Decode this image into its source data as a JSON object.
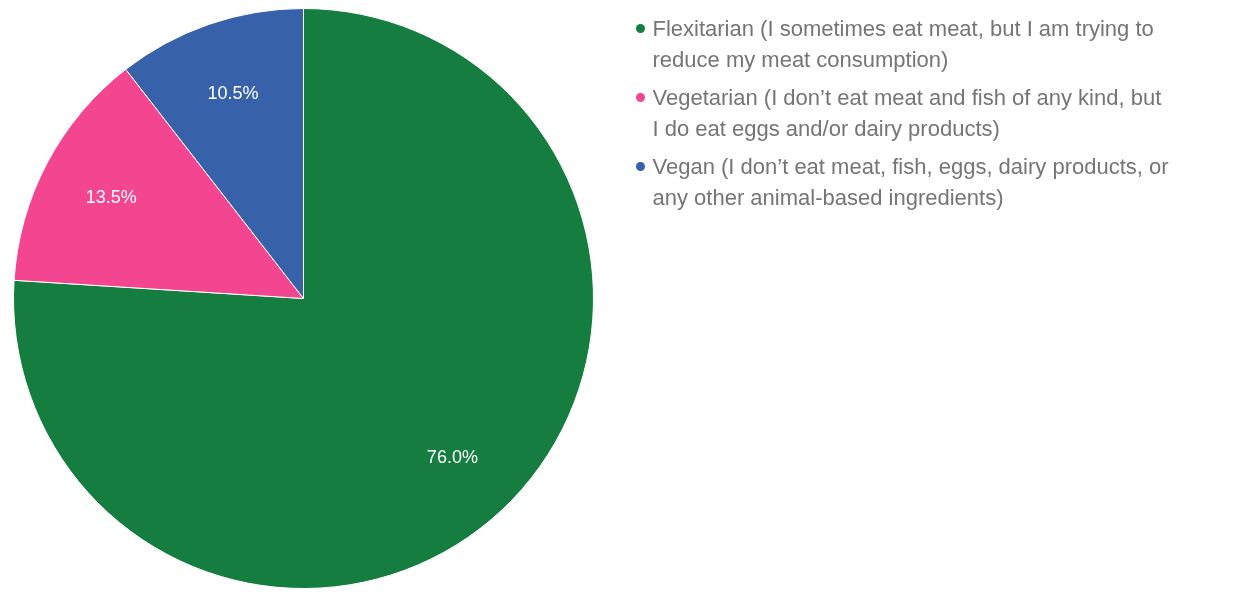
{
  "chart_data": {
    "type": "pie",
    "categories": [
      "Flexitarian (I sometimes eat meat, but I am trying to reduce my meat consumption)",
      "Vegetarian (I don’t eat meat and fish of any kind, but I do eat eggs and/or dairy products)",
      "Vegan (I don’t eat meat, fish, eggs, dairy products, or any other animal-based ingredients)"
    ],
    "values": [
      76.0,
      13.5,
      10.5
    ],
    "colors": [
      "#157d3f",
      "#f44590",
      "#3761a8"
    ],
    "value_labels": [
      "76.0%",
      "13.5%",
      "10.5%"
    ],
    "legend": "top right"
  }
}
